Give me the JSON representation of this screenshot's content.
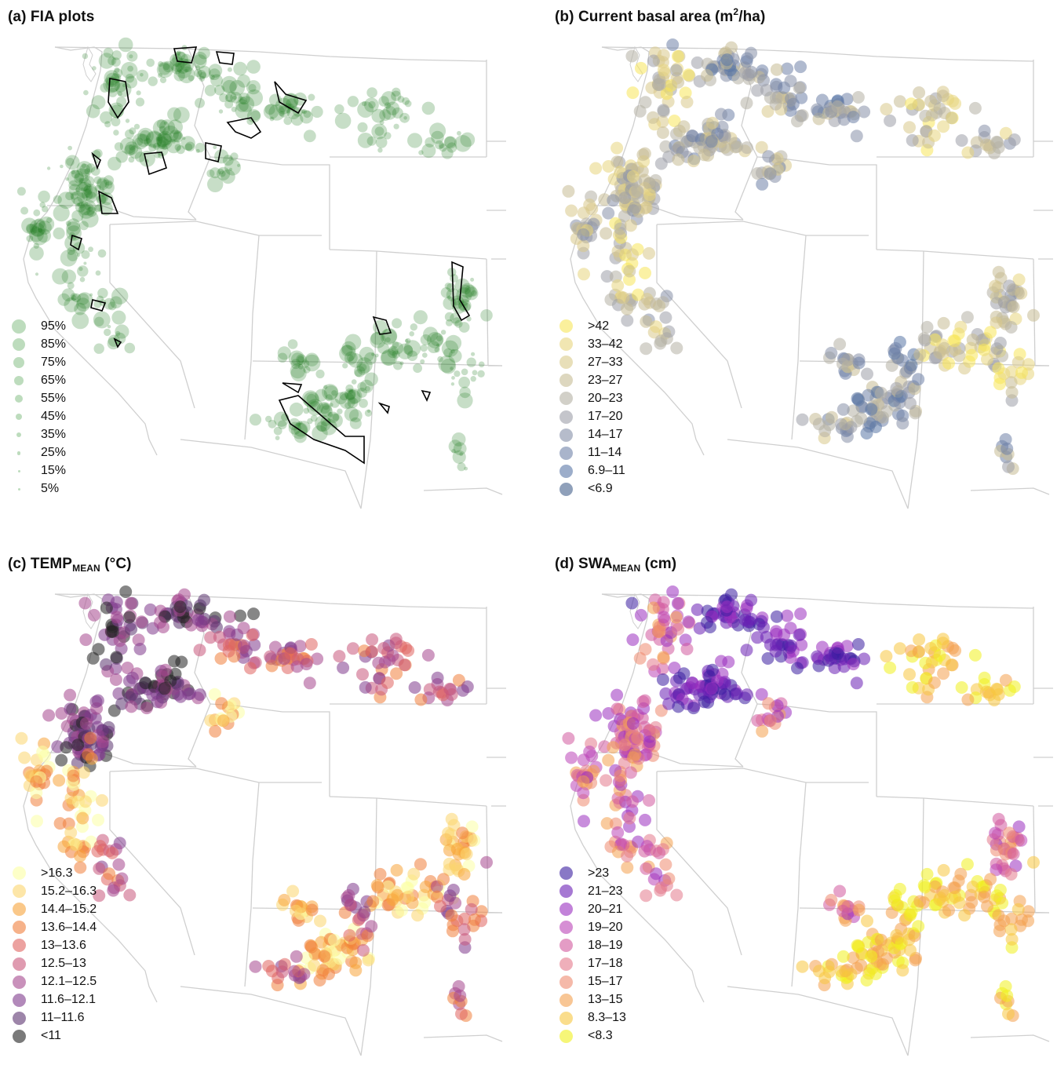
{
  "panels": [
    {
      "id": "a",
      "prefix": "(a) ",
      "title_main": "FIA plots",
      "title_sub": "",
      "title_sup": "",
      "title_after": "",
      "legend_colors": [
        "#238b23",
        "#238b23",
        "#238b23",
        "#238b23",
        "#238b23",
        "#238b23",
        "#238b23",
        "#238b23",
        "#238b23",
        "#238b23"
      ],
      "legend_labels": [
        "95%",
        "85%",
        "75%",
        "65%",
        "55%",
        "45%",
        "35%",
        "25%",
        "15%",
        "5%"
      ],
      "legend_sizes": [
        0.95,
        0.85,
        0.75,
        0.65,
        0.55,
        0.45,
        0.35,
        0.25,
        0.15,
        0.05
      ]
    },
    {
      "id": "b",
      "prefix": "(b) ",
      "title_main": "Current basal area (m",
      "title_sub": "",
      "title_sup": "2",
      "title_after": "/ha)",
      "legend_colors": [
        "#f7e65a",
        "#e8d67e",
        "#d8c98a",
        "#c7bc94",
        "#b4b1a4",
        "#9d9ea8",
        "#8690a8",
        "#6f82a8",
        "#5a76a6",
        "#44618c"
      ],
      "legend_labels": [
        ">42",
        "33–42",
        "27–33",
        "23–27",
        "20–23",
        "17–20",
        "14–17",
        "11–14",
        "6.9–11",
        "<6.9"
      ],
      "legend_sizes": []
    },
    {
      "id": "c",
      "prefix": "(c) ",
      "title_main": "TEMP",
      "title_sub": "MEAN",
      "title_sup": "",
      "title_after": " (°C)",
      "legend_colors": [
        "#fcffa4",
        "#fbd56e",
        "#f7a43a",
        "#f07f3c",
        "#e06461",
        "#c9587b",
        "#a5478e",
        "#7f3a8c",
        "#5b3470",
        "#222222"
      ],
      "legend_labels": [
        ">16.3",
        "15.2–16.3",
        "14.4–15.2",
        "13.6–14.4",
        "13–13.6",
        "12.5–13",
        "12.1–12.5",
        "11.6–12.1",
        "11–11.6",
        "<11"
      ],
      "legend_sizes": []
    },
    {
      "id": "d",
      "prefix": "(d) ",
      "title_main": "SWA",
      "title_sub": "MEAN",
      "title_sup": "",
      "title_after": " (cm)",
      "legend_colors": [
        "#3a1ea0",
        "#6a1fb5",
        "#9a2fc0",
        "#bb45b8",
        "#d25a9e",
        "#e47a8c",
        "#ee8b70",
        "#f4a04e",
        "#f7c740",
        "#f0f01e"
      ],
      "legend_labels": [
        ">23",
        "21–23",
        "20–21",
        "19–20",
        "18–19",
        "17–18",
        "15–17",
        "13–15",
        "8.3–13",
        "<8.3"
      ],
      "legend_sizes": []
    }
  ]
}
